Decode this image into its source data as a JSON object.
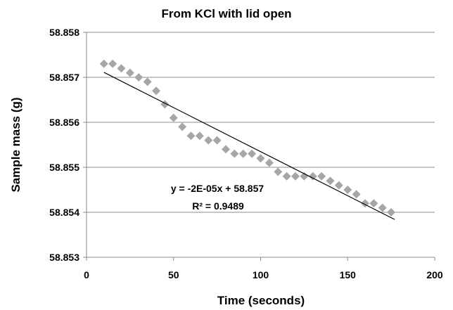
{
  "chart_data": {
    "type": "scatter",
    "title": "From KCl with lid open",
    "xlabel": "Time (seconds)",
    "ylabel": "Sample mass (g)",
    "xlim": [
      0,
      200
    ],
    "ylim": [
      58.853,
      58.858
    ],
    "x_ticks": [
      "0",
      "50",
      "100",
      "150",
      "200"
    ],
    "y_ticks": [
      "58.853",
      "58.854",
      "58.855",
      "58.856",
      "58.857",
      "58.858"
    ],
    "grid": "horizontal",
    "legend": "none",
    "point_color": "#a6a6a6",
    "series": [
      {
        "x": [
          10,
          15,
          20,
          25,
          30,
          35,
          40,
          45,
          50,
          55,
          60,
          65,
          70,
          75,
          80,
          85,
          90,
          95,
          100,
          105,
          110,
          115,
          120,
          125,
          130,
          135,
          140,
          145,
          150,
          155,
          160,
          165,
          170,
          175
        ],
        "y": [
          58.8573,
          58.8573,
          58.8572,
          58.8571,
          58.857,
          58.8569,
          58.8567,
          58.8564,
          58.8561,
          58.8559,
          58.8557,
          58.8557,
          58.8556,
          58.8556,
          58.8554,
          58.8553,
          58.8553,
          58.8553,
          58.8552,
          58.8551,
          58.8549,
          58.8548,
          58.8548,
          58.8548,
          58.8548,
          58.8548,
          58.8547,
          58.8546,
          58.8545,
          58.8544,
          58.8542,
          58.8542,
          58.8541,
          58.854
        ]
      }
    ],
    "trendline": {
      "type": "linear",
      "x_range": [
        10,
        177
      ],
      "y_range": [
        58.85711,
        58.85384
      ],
      "equation": "y = -2E-05x + 58.857",
      "r_squared": "R² = 0.9489"
    }
  }
}
